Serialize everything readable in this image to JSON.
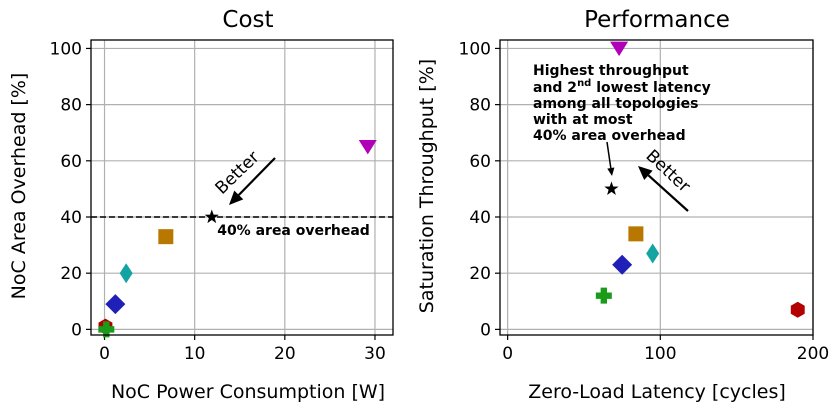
{
  "chart_data": [
    {
      "type": "scatter",
      "title": "Cost",
      "xlabel": "NoC Power Consumption [W]",
      "ylabel": "NoC Area Overhead [%]",
      "xlim": [
        -1.5,
        32
      ],
      "ylim": [
        -2,
        103
      ],
      "xticks": [
        0,
        10,
        20,
        30
      ],
      "yticks": [
        0,
        20,
        40,
        60,
        80,
        100
      ],
      "grid": true,
      "points": [
        {
          "name": "red-hexagon",
          "x": 0.1,
          "y": 1,
          "marker": "hexagon",
          "color": "#b40000"
        },
        {
          "name": "green-plus",
          "x": 0.2,
          "y": 0,
          "marker": "plus",
          "color": "#1a9c1a"
        },
        {
          "name": "blue-diamond",
          "x": 1.2,
          "y": 9,
          "marker": "diamond",
          "color": "#2020b8"
        },
        {
          "name": "teal-diamond",
          "x": 2.4,
          "y": 20,
          "marker": "thin-diamond",
          "color": "#13a3a3"
        },
        {
          "name": "brown-square",
          "x": 6.8,
          "y": 33,
          "marker": "square",
          "color": "#b87800"
        },
        {
          "name": "black-star",
          "x": 11.9,
          "y": 40,
          "marker": "star",
          "color": "#000000"
        },
        {
          "name": "purple-triangle",
          "x": 29.2,
          "y": 65,
          "marker": "triangle-down",
          "color": "#b000b8"
        }
      ],
      "hline": {
        "y": 40,
        "style": "dashed"
      },
      "annotations": {
        "threshold_label": "40% area overhead",
        "better_label": "Better"
      }
    },
    {
      "type": "scatter",
      "title": "Performance",
      "xlabel": "Zero-Load Latency [cycles]",
      "ylabel": "Saturation Throughput [%]",
      "xlim": [
        -5,
        200
      ],
      "ylim": [
        -2,
        103
      ],
      "xticks": [
        0,
        100,
        200
      ],
      "yticks": [
        0,
        20,
        40,
        60,
        80,
        100
      ],
      "grid": true,
      "points": [
        {
          "name": "red-hexagon",
          "x": 190,
          "y": 7,
          "marker": "hexagon",
          "color": "#b40000"
        },
        {
          "name": "green-plus",
          "x": 63,
          "y": 12,
          "marker": "plus",
          "color": "#1a9c1a"
        },
        {
          "name": "blue-diamond",
          "x": 75,
          "y": 23,
          "marker": "diamond",
          "color": "#2020b8"
        },
        {
          "name": "teal-diamond",
          "x": 95,
          "y": 27,
          "marker": "thin-diamond",
          "color": "#13a3a3"
        },
        {
          "name": "brown-square",
          "x": 84,
          "y": 34,
          "marker": "square",
          "color": "#b87800"
        },
        {
          "name": "black-star",
          "x": 68,
          "y": 50,
          "marker": "star",
          "color": "#000000"
        },
        {
          "name": "purple-triangle",
          "x": 73,
          "y": 100,
          "marker": "triangle-down",
          "color": "#b000b8"
        }
      ],
      "annotations": {
        "note_lines": [
          "Highest throughput",
          "and 2nd lowest latency",
          "among all topologies",
          "with at most",
          "40% area overhead"
        ],
        "note_superscript": "nd",
        "better_label": "Better"
      }
    }
  ]
}
